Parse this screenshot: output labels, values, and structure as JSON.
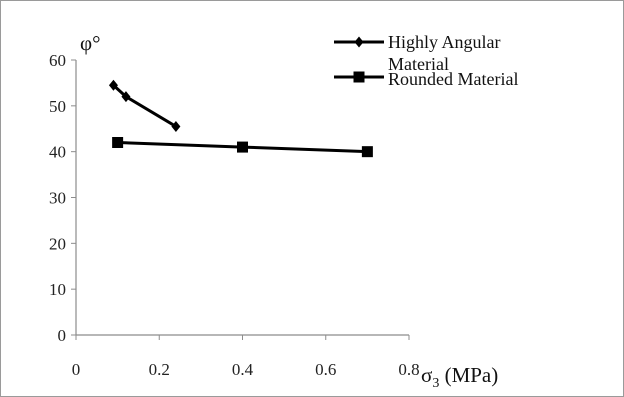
{
  "chart_data": {
    "type": "line",
    "title": "",
    "xlabel": "σ3 (MPa)",
    "ylabel": "φ°",
    "xlim": [
      0,
      0.8
    ],
    "ylim": [
      0,
      60
    ],
    "xticks": [
      "0",
      "0.2",
      "0.4",
      "0.6",
      "0.8"
    ],
    "yticks": [
      "0",
      "10",
      "20",
      "30",
      "40",
      "50",
      "60"
    ],
    "grid": false,
    "legend_position": "top-right",
    "series": [
      {
        "name": "Highly Angular Material",
        "marker": "diamond",
        "color": "#000000",
        "x": [
          0.09,
          0.12,
          0.24
        ],
        "y": [
          54.5,
          52,
          45.5
        ]
      },
      {
        "name": "Rounded Material",
        "marker": "square",
        "color": "#000000",
        "x": [
          0.1,
          0.4,
          0.7
        ],
        "y": [
          42,
          41,
          40
        ]
      }
    ]
  }
}
